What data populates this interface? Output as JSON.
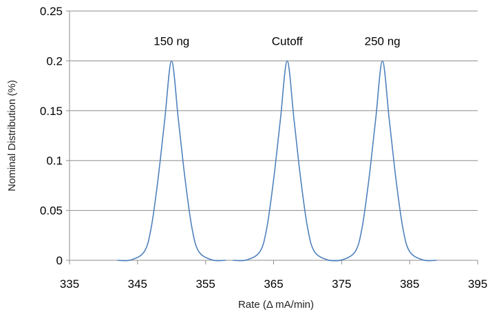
{
  "chart_data": {
    "type": "line",
    "xlabel": "Rate (Δ mA/min)",
    "ylabel": "Nominal Distribution (%)",
    "xlim": [
      335,
      395
    ],
    "ylim": [
      0,
      0.25
    ],
    "x_ticks": [
      "335",
      "345",
      "355",
      "365",
      "375",
      "385",
      "395"
    ],
    "y_ticks": [
      "0",
      "0.05",
      "0.1",
      "0.15",
      "0.2",
      "0.25"
    ],
    "grid": "horizontal",
    "series_color": "#4f81bd",
    "annotations": [
      {
        "text": "150 ng",
        "x": 350,
        "y": 0.22
      },
      {
        "text": "Cutoff",
        "x": 367,
        "y": 0.22
      },
      {
        "text": "250 ng",
        "x": 381,
        "y": 0.22
      }
    ],
    "series": [
      {
        "x": [
          342,
          344,
          346,
          347,
          348,
          349,
          350,
          351,
          352,
          353,
          354,
          356,
          358
        ],
        "values": [
          0,
          0.0003,
          0.0088,
          0.0324,
          0.0807,
          0.1412,
          0.2,
          0.1412,
          0.0807,
          0.0324,
          0.0088,
          0.0003,
          0
        ]
      },
      {
        "x": [
          359,
          361,
          363,
          364,
          365,
          366,
          367,
          368,
          369,
          370,
          371,
          373,
          375
        ],
        "values": [
          0,
          0.0003,
          0.0088,
          0.0324,
          0.0807,
          0.1412,
          0.2,
          0.1412,
          0.0807,
          0.0324,
          0.0088,
          0.0003,
          0
        ]
      },
      {
        "x": [
          373,
          375,
          377,
          378,
          379,
          380,
          381,
          382,
          383,
          384,
          385,
          387,
          389
        ],
        "values": [
          0,
          0.0003,
          0.0088,
          0.0324,
          0.0807,
          0.1412,
          0.2,
          0.1412,
          0.0807,
          0.0324,
          0.0088,
          0.0003,
          0
        ]
      }
    ]
  }
}
